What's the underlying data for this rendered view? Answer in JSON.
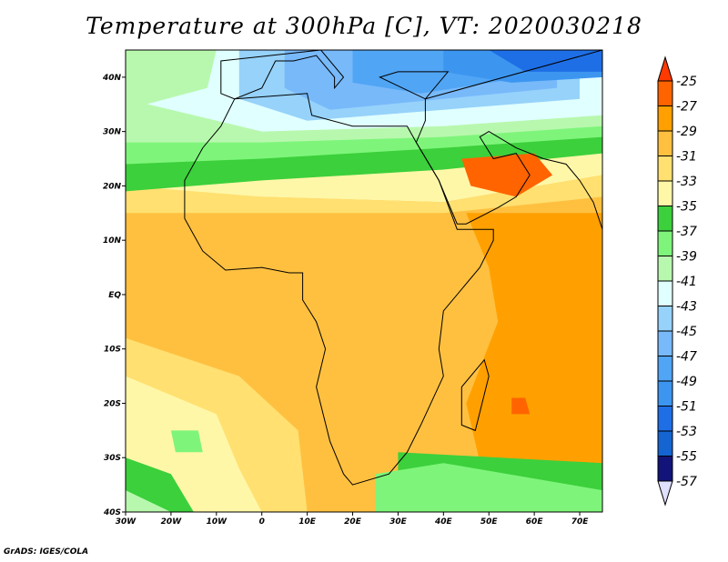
{
  "title": "Temperature at 300hPa [C], VT: 2020030218",
  "credit": "GrADS: IGES/COLA",
  "map": {
    "lon_range": [
      -30,
      75
    ],
    "lat_range": [
      -40,
      45
    ],
    "x_ticks": [
      "30W",
      "20W",
      "10W",
      "0",
      "10E",
      "20E",
      "30E",
      "40E",
      "50E",
      "60E",
      "70E"
    ],
    "y_ticks": [
      "40N",
      "30N",
      "20N",
      "10N",
      "EQ",
      "10S",
      "20S",
      "30S",
      "40S"
    ]
  },
  "colorbar": {
    "labels": [
      "-25",
      "-27",
      "-29",
      "-31",
      "-33",
      "-35",
      "-37",
      "-39",
      "-41",
      "-43",
      "-45",
      "-47",
      "-49",
      "-51",
      "-53",
      "-55",
      "-57"
    ],
    "over_color": "#ff3a00",
    "under_color": "#e0e0ff",
    "colors": [
      "#ff6400",
      "#ffa000",
      "#ffc040",
      "#ffe070",
      "#fff7a8",
      "#3cd03c",
      "#7ef57a",
      "#b8f8ae",
      "#e0ffff",
      "#96d2fa",
      "#78b9fa",
      "#50a5f5",
      "#3c96f0",
      "#1e6ee6",
      "#1464d2",
      "#12147a"
    ]
  }
}
